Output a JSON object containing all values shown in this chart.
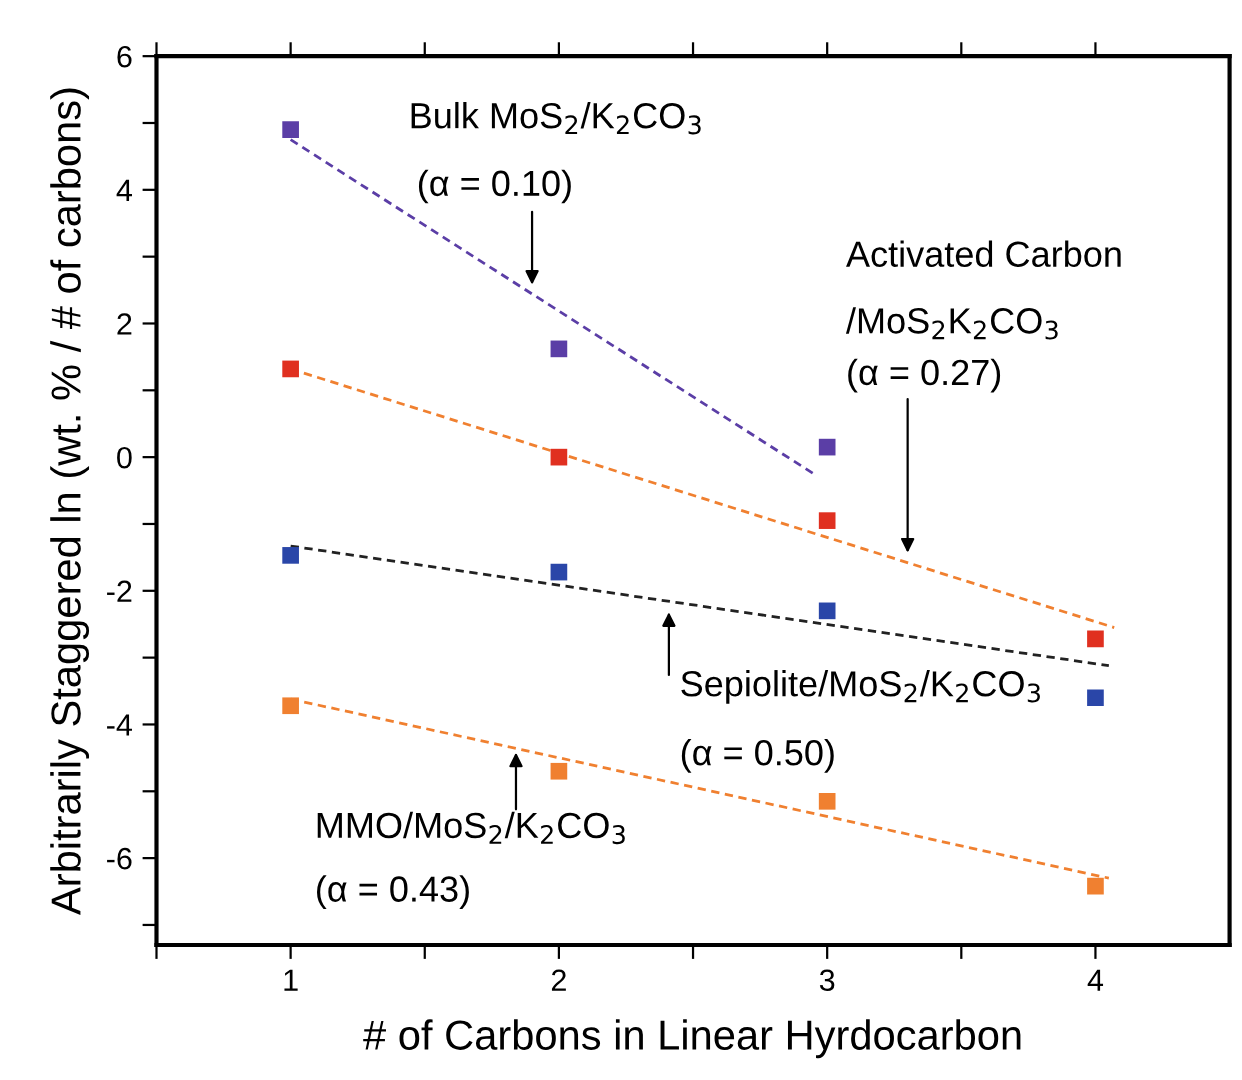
{
  "chart_data": {
    "type": "scatter",
    "xlabel": "# of Carbons in Linear Hyrdocarbon",
    "ylabel": "Arbitrarily Staggered ln (wt. % / # of carbons)",
    "xlim": [
      0.5,
      4.5
    ],
    "ylim": [
      -7.3,
      6
    ],
    "xticks": [
      {
        "value": 0.5,
        "label": null
      },
      1,
      {
        "value": 1.5,
        "label": null
      },
      2,
      {
        "value": 2.5,
        "label": null
      },
      3,
      {
        "value": 3.5,
        "label": null
      },
      4
    ],
    "yticks": [
      {
        "value": -7,
        "label": null
      },
      -6,
      {
        "value": -5,
        "label": null
      },
      -4,
      {
        "value": -3,
        "label": null
      },
      -2,
      {
        "value": -1,
        "label": null
      },
      0,
      {
        "value": 1,
        "label": null
      },
      2,
      {
        "value": 3,
        "label": null
      },
      4,
      {
        "value": 5,
        "label": null
      },
      6
    ],
    "grid": false,
    "legend": false,
    "marker": "square",
    "series": [
      {
        "color": "#5b3ea6",
        "x": [
          1,
          2,
          3
        ],
        "values": [
          4.9,
          1.62,
          0.15
        ]
      },
      {
        "color": "#e03020",
        "x": [
          1,
          2,
          3,
          4
        ],
        "values": [
          1.32,
          0.0,
          -0.95,
          -2.72
        ]
      },
      {
        "color": "#2a46a8",
        "x": [
          1,
          2,
          3,
          4
        ],
        "values": [
          -1.47,
          -1.72,
          -2.3,
          -3.6
        ]
      },
      {
        "color": "#f08030",
        "x": [
          1,
          2,
          3,
          4
        ],
        "values": [
          -3.72,
          -4.7,
          -5.15,
          -6.42
        ]
      },
      {
        "type": "line",
        "line_style": "dashed",
        "marker": "none",
        "color": "#5b3ea6",
        "x": [
          1,
          2.95
        ],
        "values": [
          4.75,
          -0.25
        ]
      },
      {
        "type": "line",
        "line_style": "dashed",
        "marker": "none",
        "color": "#f08030",
        "x": [
          1,
          4.07
        ],
        "values": [
          1.32,
          -2.55
        ]
      },
      {
        "type": "line",
        "line_style": "dashed",
        "marker": "none",
        "color": "#222222",
        "x": [
          1,
          4.05
        ],
        "values": [
          -1.33,
          -3.12
        ]
      },
      {
        "type": "line",
        "line_style": "dashed",
        "marker": "none",
        "color": "#f08030",
        "x": [
          1,
          4.05
        ],
        "values": [
          -3.62,
          -6.3
        ]
      }
    ],
    "annotations": [
      "Bulk MoS$_{2}$/K$_{2}$CO$_{3}$",
      {
        "text": "(α = 0.10)",
        "x": 1.9,
        "y": 2.58
      },
      "Activated Carbon",
      "/MoS$_{2}$K$_{2}$CO$_{3}$",
      {
        "text": "(α = 0.27)",
        "x": 3.3,
        "y": -1.43
      },
      {
        "text": "Sepiolite/MoS$_{2}$/K$_{2}$CO$_{3}$",
        "x": 2.41,
        "y": -2.32
      },
      "(α = 0.50)",
      {
        "text": "MMO/MoS$_{2}$/K$_{2}$CO$_{3}$",
        "x": 1.84,
        "y": -4.42
      },
      "(α = 0.43)"
    ]
  }
}
